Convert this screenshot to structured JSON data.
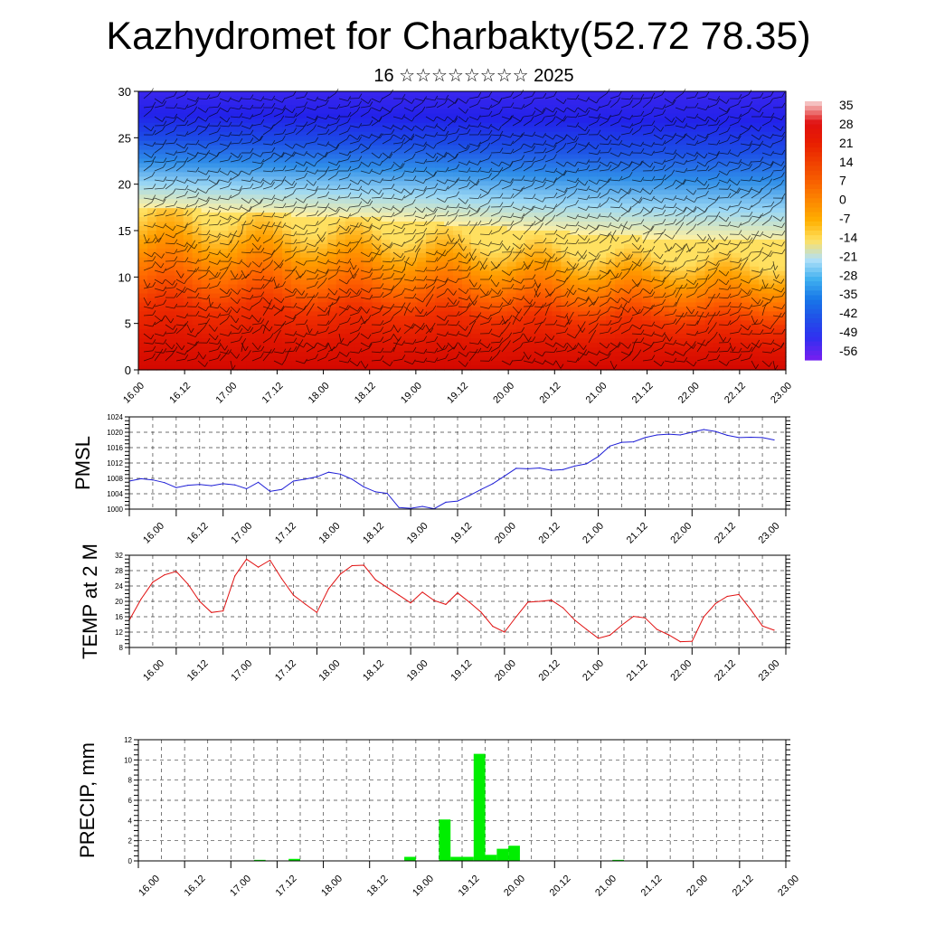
{
  "header": {
    "title": "Kazhydromet for Charbakty(52.72 78.35)",
    "subtitle": "16 ☆☆☆☆☆☆☆☆ 2025"
  },
  "colors": {
    "pmsl_line": "#1f1fd6",
    "temp_line": "#e01010",
    "precip_bar": "#00ee00"
  },
  "chart_data": [
    {
      "type": "heatmap",
      "title": "",
      "description_hint": "Cross-section: temperature shading with wind barbs over height",
      "ylim": [
        0,
        30
      ],
      "y_ticks": [
        0,
        5,
        10,
        15,
        20,
        25,
        30
      ],
      "x_ticks": [
        "16.00",
        "16.12",
        "17.00",
        "17.12",
        "18.00",
        "18.12",
        "19.00",
        "19.12",
        "20.00",
        "20.12",
        "21.00",
        "21.12",
        "22.00",
        "22.12",
        "23.00"
      ],
      "colorbar_labels": [
        "35",
        "28",
        "21",
        "14",
        "7",
        "0",
        "-7",
        "-14",
        "-21",
        "-28",
        "-35",
        "-42",
        "-49",
        "-56"
      ],
      "colorbar_colors": [
        "#f5c0c0",
        "#e01010",
        "#e81e00",
        "#f04000",
        "#f86000",
        "#fc8800",
        "#ffb000",
        "#ffe060",
        "#b0e0f8",
        "#40b0f0",
        "#1878e8",
        "#2050e8",
        "#3030f0",
        "#7020f0"
      ],
      "boundary_levels": [
        17.5,
        17.0,
        16.5,
        16.0,
        15.2,
        14.5,
        14.0,
        13.8
      ],
      "grid": false
    },
    {
      "type": "line",
      "ylabel": "PMSL",
      "ylim": [
        1000,
        1024
      ],
      "y_ticks": [
        1000,
        1004,
        1008,
        1012,
        1016,
        1020,
        1024
      ],
      "x_ticks": [
        "16.00",
        "16.12",
        "17.00",
        "17.12",
        "18.00",
        "18.12",
        "19.00",
        "19.12",
        "20.00",
        "20.12",
        "21.00",
        "21.12",
        "22.00",
        "22.12",
        "23.00"
      ],
      "x": [
        0,
        3,
        6,
        9,
        12,
        15,
        18,
        21,
        24,
        27,
        30,
        33,
        36,
        39,
        42,
        45,
        48,
        51,
        54,
        57,
        60,
        63,
        66,
        69,
        72,
        75,
        78,
        81,
        84,
        87,
        90,
        93,
        96,
        99,
        102,
        105,
        108,
        111,
        114,
        117,
        120,
        123,
        126,
        129,
        132,
        135,
        138,
        141,
        144,
        147,
        150,
        153,
        156,
        159,
        162,
        165
      ],
      "values": [
        1007.3,
        1007.9,
        1007.6,
        1006.9,
        1005.6,
        1006.2,
        1006.4,
        1006.1,
        1006.6,
        1006.3,
        1005.3,
        1007.0,
        1004.6,
        1005.1,
        1007.3,
        1007.8,
        1008.4,
        1009.6,
        1009.1,
        1007.8,
        1005.8,
        1004.5,
        1004.1,
        1000.4,
        1000.2,
        1000.7,
        1000.1,
        1001.8,
        1002.1,
        1003.5,
        1005.1,
        1006.6,
        1008.6,
        1010.6,
        1010.5,
        1010.7,
        1010.1,
        1010.3,
        1011.2,
        1011.8,
        1013.7,
        1016.4,
        1017.4,
        1017.5,
        1018.6,
        1019.3,
        1019.5,
        1019.3,
        1020.0,
        1020.7,
        1020.2,
        1019.2,
        1018.6,
        1018.7,
        1018.6,
        1018.0
      ]
    },
    {
      "type": "line",
      "ylabel": "TEMP at 2 M",
      "ylim": [
        8,
        32
      ],
      "y_ticks": [
        8,
        12,
        16,
        20,
        24,
        28,
        32
      ],
      "x_ticks": [
        "16.00",
        "16.12",
        "17.00",
        "17.12",
        "18.00",
        "18.12",
        "19.00",
        "19.12",
        "20.00",
        "20.12",
        "21.00",
        "21.12",
        "22.00",
        "22.12",
        "23.00"
      ],
      "x": [
        0,
        3,
        6,
        9,
        12,
        15,
        18,
        21,
        24,
        27,
        30,
        33,
        36,
        39,
        42,
        45,
        48,
        51,
        54,
        57,
        60,
        63,
        66,
        69,
        72,
        75,
        78,
        81,
        84,
        87,
        90,
        93,
        96,
        99,
        102,
        105,
        108,
        111,
        114,
        117,
        120,
        123,
        126,
        129,
        132,
        135,
        138,
        141,
        144,
        147,
        150,
        153,
        156,
        159,
        162,
        165
      ],
      "values": [
        15.1,
        20.6,
        25.0,
        26.9,
        27.8,
        24.5,
        20.0,
        17.1,
        17.5,
        26.6,
        31.0,
        28.9,
        30.7,
        25.9,
        21.6,
        19.3,
        17.1,
        23.3,
        27.1,
        29.3,
        29.4,
        25.6,
        23.6,
        21.6,
        19.6,
        22.4,
        20.2,
        19.2,
        22.2,
        19.8,
        17.2,
        13.5,
        12.0,
        16.0,
        19.8,
        20.0,
        20.3,
        18.3,
        15.1,
        12.7,
        10.4,
        11.2,
        13.8,
        16.1,
        15.7,
        12.7,
        11.3,
        9.5,
        9.6,
        16.0,
        19.4,
        21.3,
        21.8,
        17.9,
        13.6,
        12.5
      ]
    },
    {
      "type": "bar",
      "ylabel": "PRECIP, mm",
      "ylim": [
        0,
        12
      ],
      "y_ticks": [
        0,
        2,
        4,
        6,
        8,
        10,
        12
      ],
      "x_ticks": [
        "16.00",
        "16.12",
        "17.00",
        "17.12",
        "18.00",
        "18.12",
        "19.00",
        "19.12",
        "20.00",
        "20.12",
        "21.00",
        "21.12",
        "22.00",
        "22.12",
        "23.00"
      ],
      "x": [
        0,
        3,
        6,
        9,
        12,
        15,
        18,
        21,
        24,
        27,
        30,
        33,
        36,
        39,
        42,
        45,
        48,
        51,
        54,
        57,
        60,
        63,
        66,
        69,
        72,
        75,
        78,
        81,
        84,
        87,
        90,
        93,
        96,
        99,
        102,
        105,
        108,
        111,
        114,
        117,
        120,
        123,
        126,
        129,
        132,
        135,
        138,
        141,
        144,
        147,
        150,
        153,
        156,
        159,
        162,
        165
      ],
      "values": [
        0,
        0,
        0,
        0,
        0,
        0,
        0,
        0,
        0,
        0,
        0.1,
        0,
        0,
        0.2,
        0,
        0,
        0,
        0,
        0,
        0,
        0,
        0,
        0,
        0.4,
        0,
        0,
        4.1,
        0.4,
        0.4,
        10.6,
        0.6,
        1.2,
        1.5,
        0,
        0,
        0,
        0,
        0,
        0,
        0,
        0,
        0.1,
        0,
        0,
        0,
        0,
        0,
        0,
        0,
        0,
        0,
        0,
        0,
        0,
        0,
        0
      ]
    }
  ]
}
